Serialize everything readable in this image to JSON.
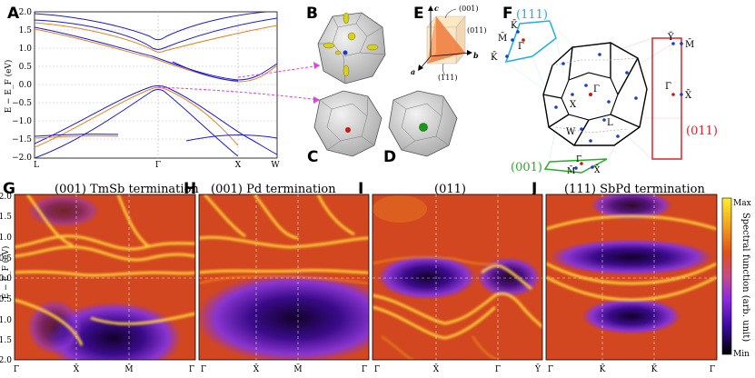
{
  "panel_labels": {
    "A": "A",
    "B": "B",
    "C": "C",
    "D": "D",
    "E": "E",
    "F": "F",
    "G": "G",
    "H": "H",
    "I": "I",
    "J": "J"
  },
  "panel_a": {
    "ylabel": "E − E_F (eV)",
    "yticks": [
      "2.0",
      "1.5",
      "1.0",
      "0.5",
      "0.0",
      "−0.5",
      "−1.0",
      "−1.5",
      "−2.0"
    ],
    "xticks": [
      "L",
      "Γ",
      "X",
      "W"
    ]
  },
  "panel_e": {
    "axes": {
      "a": "a",
      "b": "b",
      "c": "c"
    },
    "planes": {
      "p001": "(001)",
      "p011": "(011)",
      "p111": "(111)"
    }
  },
  "panel_f": {
    "surface_labels": {
      "s111": "(111)",
      "s011": "(011)",
      "s001": "(001)"
    },
    "points_111": {
      "K1": "K̄",
      "M": "M̄",
      "K2": "K̄",
      "G": "Γ̄"
    },
    "points_011": {
      "Y": "Ȳ",
      "M": "M̄",
      "G": "Γ̄",
      "X": "X̄"
    },
    "points_001": {
      "G": "Γ̄",
      "M": "M̄",
      "X": "X̄"
    },
    "points_bz": {
      "G": "Γ",
      "X": "X",
      "W": "W",
      "L": "L"
    }
  },
  "spectral": {
    "ylabel": "E − E_F (eV)",
    "yticks": [
      "2.0",
      "1.5",
      "1.0",
      "0.5",
      "0.0",
      "−0.5",
      "−1.0",
      "−1.5",
      "−2.0"
    ],
    "panels": [
      {
        "title": "(001)  TmSb termination",
        "xticks": [
          "Γ̄",
          "X̄",
          "M̄",
          "Γ̄"
        ]
      },
      {
        "title": "(001)  Pd termination",
        "xticks": [
          "Γ̄",
          "X̄",
          "M̄",
          "Γ̄"
        ]
      },
      {
        "title": "(011)",
        "xticks": [
          "Γ̄",
          "X̄",
          "Γ̄",
          "Ȳ"
        ]
      },
      {
        "title": "(111)  SbPd termination",
        "xticks": [
          "Γ̄",
          "K̄",
          "K̄",
          "Γ̄"
        ]
      }
    ],
    "colorbar": {
      "max": "Max",
      "min": "Min",
      "label": "Spectral function (arb. unit)"
    }
  },
  "colors": {
    "band_blue": "#1a1ad6",
    "band_orange": "#e8821e",
    "surf_111": "#1bb0e0",
    "surf_011": "#e0202a",
    "surf_001": "#22b022",
    "arrow_magenta": "#e040e0"
  }
}
